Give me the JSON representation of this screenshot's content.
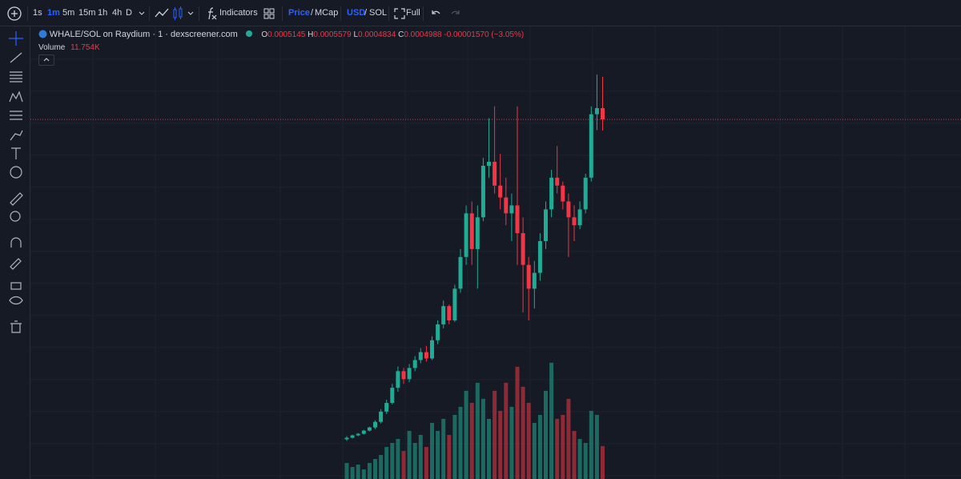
{
  "toolbar": {
    "intervals": [
      "1s",
      "1m",
      "5m",
      "15m",
      "1h",
      "4h",
      "D"
    ],
    "active_interval": "1m",
    "indicators": "Indicators",
    "price": "Price",
    "slash": "/",
    "mcap": "MCap",
    "usd": "USD",
    "sol": "SOL",
    "full": "Full"
  },
  "legend": {
    "title": "WHALE/SOL on Raydium · 1 · dexscreener.com",
    "o": "O",
    "h": "H",
    "l": "L",
    "c": "C",
    "change": "-0.00001570 (−3.05%)",
    "volume_title": "Volume"
  },
  "chart_data": {
    "type": "candlestick",
    "up_color": "#22ab94",
    "down_color": "#f23645",
    "ylim": [
      0,
      0.00062
    ],
    "open": [
      5.5e-05,
      5.72e-05,
      6.05e-05,
      6.27e-05,
      6.71e-05,
      7.15e-05,
      7.92e-05,
      9.35e-05,
      0.0001056,
      0.0001265,
      0.0001496,
      0.0001386,
      0.000154,
      0.000165,
      0.000176,
      0.0001672,
      0.0001925,
      0.0002145,
      0.0002398,
      0.00022,
      0.000264,
      0.000308,
      0.0003685,
      0.000319,
      0.000363,
      0.0004345,
      0.00044,
      0.000407,
      0.0003905,
      0.0003685,
      0.0003795,
      0.000341,
      0.000297,
      0.000264,
      0.000286,
      0.00033,
      0.000374,
      0.000418,
      0.000407,
      0.000385,
      0.000363,
      0.000352,
      0.000374,
      0.000418,
      0.000506,
      0.0005145
    ],
    "high": [
      5.94e-05,
      6.16e-05,
      6.38e-05,
      6.82e-05,
      7.26e-05,
      8.14e-05,
      9.68e-05,
      0.00011,
      0.000132,
      0.0001562,
      0.000154,
      0.0001595,
      0.0001705,
      0.0001815,
      0.0001848,
      0.000198,
      0.00022,
      0.0002475,
      0.000242,
      0.0002695,
      0.000319,
      0.0003795,
      0.000385,
      0.0003795,
      0.0004455,
      0.0005005,
      0.000517,
      0.000451,
      0.000418,
      0.000396,
      0.000517,
      0.000363,
      0.000308,
      0.0003025,
      0.000341,
      0.000385,
      0.000429,
      0.000462,
      0.0004125,
      0.000396,
      0.0003795,
      0.000385,
      0.0004235,
      0.000517,
      0.000561,
      0.0005579
    ],
    "low": [
      5.28e-05,
      5.61e-05,
      5.94e-05,
      6.16e-05,
      6.6e-05,
      6.93e-05,
      7.7e-05,
      9.02e-05,
      0.0001034,
      0.000121,
      0.000132,
      0.0001342,
      0.0001496,
      0.0001606,
      0.0001628,
      0.000165,
      0.000187,
      0.000209,
      0.0002145,
      0.0002178,
      0.0002585,
      0.000297,
      0.000297,
      0.000264,
      0.0003575,
      0.000418,
      0.000396,
      0.000374,
      0.000352,
      0.00033,
      0.000297,
      0.000231,
      0.00022,
      0.0002365,
      0.000275,
      0.000319,
      0.000363,
      0.000396,
      0.000374,
      0.000308,
      0.00033,
      0.0003465,
      0.0003685,
      0.0004125,
      0.000484,
      0.0004834
    ],
    "close": [
      5.72e-05,
      6.05e-05,
      6.27e-05,
      6.71e-05,
      7.15e-05,
      7.92e-05,
      9.35e-05,
      0.0001056,
      0.0001265,
      0.0001496,
      0.0001386,
      0.000154,
      0.000165,
      0.000176,
      0.0001672,
      0.0001925,
      0.0002145,
      0.0002398,
      0.00022,
      0.000264,
      0.000308,
      0.0003685,
      0.000319,
      0.000363,
      0.0004345,
      0.00044,
      0.000407,
      0.0003905,
      0.0003685,
      0.0003795,
      0.000341,
      0.000297,
      0.000264,
      0.000286,
      0.00033,
      0.000374,
      0.000418,
      0.000407,
      0.000385,
      0.000363,
      0.000352,
      0.000374,
      0.000418,
      0.000506,
      0.0005145,
      0.0004988
    ],
    "volume": {
      "name": "Volume",
      "vlim": [
        0,
        48000
      ],
      "values": [
        5720,
        4290,
        5150,
        3430,
        5720,
        7150,
        8580,
        11440,
        12870,
        14300,
        10010,
        17160,
        12870,
        15730,
        11440,
        20020,
        17160,
        21450,
        15730,
        22880,
        25740,
        31460,
        27170,
        34320,
        28600,
        21450,
        31460,
        24310,
        34320,
        25740,
        40040,
        32890,
        27170,
        20020,
        22880,
        31460,
        41470,
        21450,
        22880,
        28600,
        17160,
        14300,
        12870,
        24310,
        22880,
        11754
      ],
      "value_labels": [
        null,
        null,
        null,
        null,
        null,
        null,
        null,
        null,
        null,
        null,
        null,
        null,
        null,
        null,
        null,
        null,
        null,
        null,
        null,
        null,
        null,
        null,
        null,
        null,
        null,
        null,
        null,
        null,
        null,
        null,
        null,
        null,
        null,
        null,
        null,
        null,
        null,
        null,
        null,
        null,
        null,
        null,
        null,
        null,
        null,
        "11.754K"
      ]
    }
  }
}
